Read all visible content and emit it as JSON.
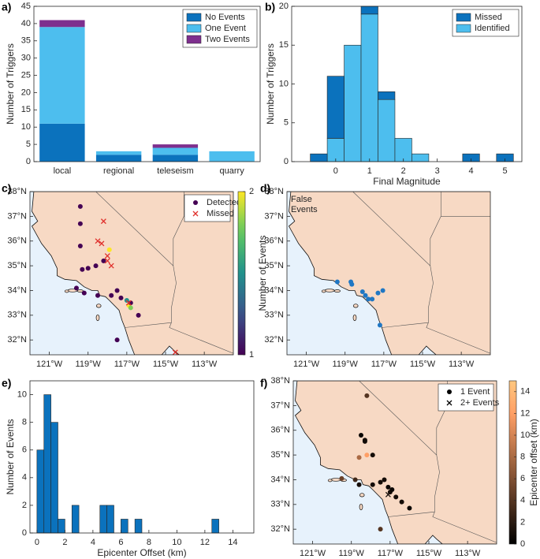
{
  "chart_data": [
    {
      "type": "stacked_bar",
      "panel_label": "a)",
      "ylabel": "Number of Triggers",
      "categories": [
        "local",
        "regional",
        "teleseism",
        "quarry"
      ],
      "series": [
        {
          "name": "No Events",
          "color": "#0b72bd",
          "values": [
            11,
            2,
            2,
            0
          ]
        },
        {
          "name": "One Event",
          "color": "#4dbeee",
          "values": [
            28,
            1,
            2,
            3
          ]
        },
        {
          "name": "Two Events",
          "color": "#7e2f8e",
          "values": [
            2,
            0,
            1,
            0
          ]
        }
      ],
      "ylim": [
        0,
        45
      ],
      "yticks": [
        0,
        5,
        10,
        15,
        20,
        25,
        30,
        35,
        40,
        45
      ],
      "legend": "upper right"
    },
    {
      "type": "histogram",
      "panel_label": "b)",
      "ylabel": "Number of Triggers",
      "xlabel": "Final Magnitude",
      "bins": [
        -0.75,
        -0.25,
        0.25,
        0.75,
        1.25,
        1.75,
        2.25,
        2.75,
        3.25,
        3.75,
        4.25,
        4.75,
        5.25
      ],
      "series": [
        {
          "name": "Missed",
          "color": "#0b72bd",
          "values": [
            1,
            8,
            0,
            1,
            1,
            0,
            0,
            0,
            0,
            1,
            0,
            1
          ]
        },
        {
          "name": "Identified",
          "color": "#4dbeee",
          "values": [
            0,
            3,
            15,
            19,
            8,
            3,
            1,
            0,
            0,
            0,
            0,
            0
          ]
        }
      ],
      "xlim": [
        -1.3,
        5.5
      ],
      "xticks": [
        0,
        1,
        2,
        3,
        4,
        5
      ],
      "ylim": [
        0,
        20
      ],
      "yticks": [
        0,
        5,
        10,
        15,
        20
      ],
      "legend": "upper right"
    },
    {
      "type": "map",
      "panel_label": "c)",
      "xlim": [
        -122,
        -111.5
      ],
      "ylim": [
        31.4,
        38
      ],
      "xticks": [
        {
          "value": -121,
          "label": "121°W"
        },
        {
          "value": -119,
          "label": "119°W"
        },
        {
          "value": -117,
          "label": "117°W"
        },
        {
          "value": -115,
          "label": "115°W"
        },
        {
          "value": -113,
          "label": "113°W"
        }
      ],
      "yticks": [
        {
          "value": 32,
          "label": "32°N"
        },
        {
          "value": 33,
          "label": "33°N"
        },
        {
          "value": 34,
          "label": "34°N"
        },
        {
          "value": 35,
          "label": "35°N"
        },
        {
          "value": 36,
          "label": "36°N"
        },
        {
          "value": 37,
          "label": "37°N"
        },
        {
          "value": 38,
          "label": "38°N"
        }
      ],
      "series": [
        {
          "name": "Detected",
          "marker": "o",
          "color": "#440154",
          "x": [
            -119.4,
            -119.4,
            -119.4,
            -117.9,
            -118.2,
            -118.6,
            -119.0,
            -119.3,
            -119.6,
            -119.2,
            -118.5,
            -117.8,
            -117.5,
            -117.3,
            -117.0,
            -116.9,
            -116.8,
            -116.4,
            -117.5,
            -116.8
          ],
          "y": [
            37.4,
            36.7,
            35.8,
            35.65,
            35.2,
            35.0,
            34.9,
            34.85,
            34.1,
            33.9,
            33.8,
            33.8,
            34.0,
            33.7,
            33.6,
            33.4,
            33.3,
            33.0,
            32.0,
            33.5
          ],
          "values": [
            1,
            1,
            1,
            2,
            1,
            1,
            1,
            1,
            1,
            1,
            1,
            1,
            1,
            1,
            1.5,
            2,
            1.8,
            1,
            1,
            1
          ]
        },
        {
          "name": "Missed",
          "marker": "x",
          "color": "#e0302c",
          "x": [
            -118.2,
            -118.5,
            -118.3,
            -118.0,
            -118.0,
            -117.8,
            -116.9,
            -114.5
          ],
          "y": [
            36.8,
            36.0,
            35.9,
            35.4,
            35.2,
            35.0,
            33.5,
            31.5
          ]
        }
      ],
      "colorbar": {
        "label": "Number of Events",
        "colormap": "viridis",
        "lim": [
          1,
          2
        ],
        "ticks": [
          1,
          2
        ]
      },
      "legend": "upper right"
    },
    {
      "type": "map",
      "panel_label": "d)",
      "annotation": "False Events",
      "xlim": [
        -122,
        -111.5
      ],
      "ylim": [
        31.4,
        38
      ],
      "xticks": [
        {
          "value": -121,
          "label": "121°W"
        },
        {
          "value": -119,
          "label": "119°W"
        },
        {
          "value": -117,
          "label": "117°W"
        },
        {
          "value": -115,
          "label": "115°W"
        },
        {
          "value": -113,
          "label": "113°W"
        }
      ],
      "yticks": [
        {
          "value": 32,
          "label": "32°N"
        },
        {
          "value": 33,
          "label": "33°N"
        },
        {
          "value": 34,
          "label": "34°N"
        },
        {
          "value": 35,
          "label": "35°N"
        },
        {
          "value": 36,
          "label": "36°N"
        },
        {
          "value": 37,
          "label": "37°N"
        },
        {
          "value": 38,
          "label": "38°N"
        }
      ],
      "series": [
        {
          "marker": "o",
          "color": "#1f77c4",
          "x": [
            -119.4,
            -118.7,
            -118.65,
            -118.1,
            -117.95,
            -117.8,
            -117.6,
            -117.3,
            -117.05,
            -117.2
          ],
          "y": [
            34.35,
            34.35,
            34.25,
            33.95,
            33.8,
            33.65,
            33.65,
            33.9,
            34.0,
            32.6
          ]
        }
      ]
    },
    {
      "type": "histogram",
      "panel_label": "e)",
      "ylabel": "Number of Events",
      "xlabel": "Epicenter Offset (km)",
      "bins": [
        0,
        0.5,
        1,
        1.5,
        2,
        2.5,
        3,
        3.5,
        4,
        4.5,
        5,
        5.5,
        6,
        6.5,
        7,
        7.5,
        8,
        8.5,
        9,
        9.5,
        10,
        10.5,
        11,
        11.5,
        12,
        12.5,
        13
      ],
      "series": [
        {
          "color": "#0b72bd",
          "values": [
            6,
            10,
            8,
            1,
            0,
            2,
            0,
            0,
            0,
            2,
            2,
            0,
            1,
            0,
            1,
            0,
            0,
            0,
            0,
            0,
            0,
            0,
            0,
            0,
            0,
            1
          ]
        }
      ],
      "xlim": [
        -0.5,
        15.5
      ],
      "xticks": [
        0,
        2,
        4,
        6,
        8,
        10,
        12,
        14
      ],
      "ylim": [
        0,
        11
      ],
      "yticks": [
        0,
        2,
        4,
        6,
        8,
        10
      ]
    },
    {
      "type": "map",
      "panel_label": "f)",
      "xlim": [
        -122,
        -111.5
      ],
      "ylim": [
        31.4,
        38
      ],
      "xticks": [
        {
          "value": -121,
          "label": "121°W"
        },
        {
          "value": -119,
          "label": "119°W"
        },
        {
          "value": -117,
          "label": "117°W"
        },
        {
          "value": -115,
          "label": "115°W"
        },
        {
          "value": -113,
          "label": "113°W"
        }
      ],
      "yticks": [
        {
          "value": 32,
          "label": "32°N"
        },
        {
          "value": 33,
          "label": "33°N"
        },
        {
          "value": 34,
          "label": "34°N"
        },
        {
          "value": 35,
          "label": "35°N"
        },
        {
          "value": 36,
          "label": "36°N"
        },
        {
          "value": 37,
          "label": "37°N"
        },
        {
          "value": 38,
          "label": "38°N"
        }
      ],
      "series": [
        {
          "name": "1 Event",
          "marker": "o",
          "color": "#000000",
          "x": [
            -118.2,
            -118.5,
            -118.3,
            -118.3,
            -118.2,
            -117.9,
            -118.6,
            -118.8,
            -118.6,
            -117.9,
            -117.5,
            -117.3,
            -117.1,
            -117.0,
            -116.9,
            -116.7,
            -116.4,
            -116.0,
            -117.5,
            -119.5
          ],
          "y": [
            37.4,
            35.8,
            35.6,
            35.55,
            35.0,
            35.0,
            34.9,
            34.0,
            33.8,
            33.8,
            33.9,
            34.0,
            33.7,
            33.5,
            33.6,
            33.3,
            33.1,
            32.85,
            32.0,
            34.05
          ],
          "values": [
            4,
            0.5,
            1,
            0.8,
            12,
            1,
            8,
            3,
            1,
            1,
            1,
            1,
            0.5,
            1,
            0.5,
            1,
            1,
            0.5,
            4,
            5
          ]
        },
        {
          "name": "2+ Events",
          "marker": "x",
          "color": "#000000",
          "x": [
            -117.1
          ],
          "y": [
            33.4
          ],
          "values": [
            1
          ]
        }
      ],
      "colorbar": {
        "label": "Epicenter offset (km)",
        "colormap": "copper",
        "lim": [
          0,
          15
        ],
        "ticks": [
          0,
          2,
          4,
          6,
          8,
          10,
          12,
          14
        ]
      },
      "legend": "upper right"
    }
  ]
}
